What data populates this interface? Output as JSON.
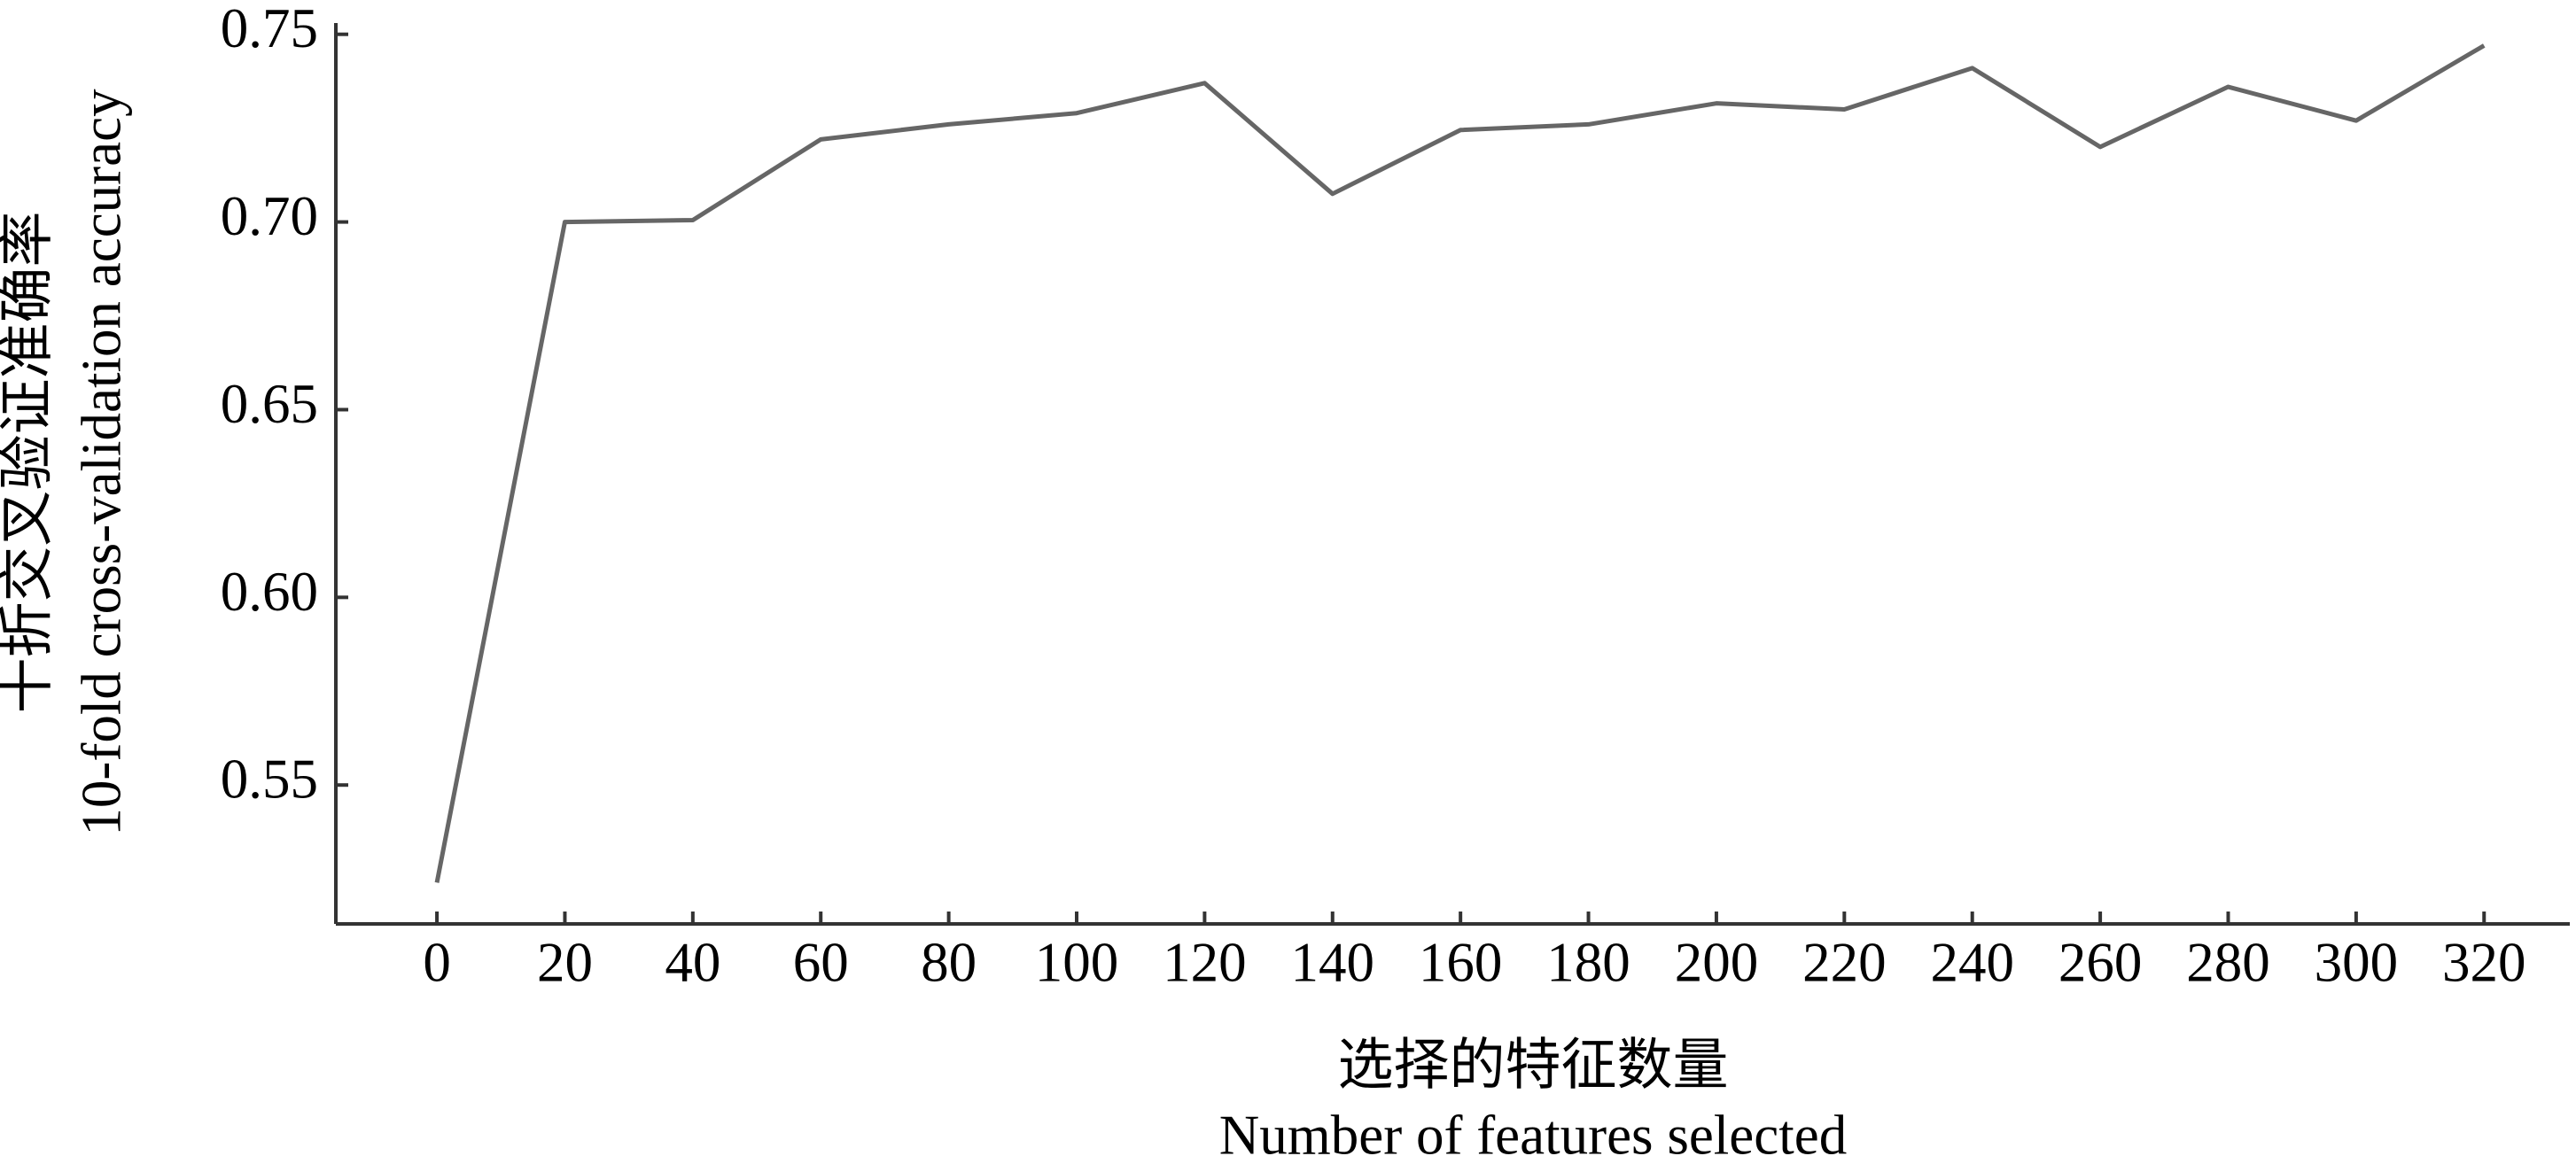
{
  "chart_data": {
    "type": "line",
    "xlabel": [
      "选择的特征数量",
      "Number of features selected"
    ],
    "ylabel": [
      "十折交叉验证准确率",
      "10-fold cross-validation accuracy"
    ],
    "x": [
      0,
      20,
      40,
      60,
      80,
      100,
      120,
      140,
      160,
      180,
      200,
      220,
      240,
      260,
      280,
      300,
      320
    ],
    "series": [
      {
        "color": "#666666",
        "values": [
          0.524,
          0.7,
          0.7005,
          0.722,
          0.726,
          0.729,
          0.737,
          0.7075,
          0.7245,
          0.726,
          0.7316,
          0.73,
          0.741,
          0.72,
          0.736,
          0.727,
          0.747
        ]
      }
    ],
    "xlim": [
      -15.8,
      333.4
    ],
    "ylim": [
      0.513,
      0.753
    ],
    "xticks": [
      0,
      20,
      40,
      60,
      80,
      100,
      120,
      140,
      160,
      180,
      200,
      220,
      240,
      260,
      280,
      300,
      320
    ],
    "yticks": [
      {
        "value": 0.55,
        "label": "0.55"
      },
      {
        "value": 0.6,
        "label": "0.60"
      },
      {
        "value": 0.65,
        "label": "0.65"
      },
      {
        "value": 0.7,
        "label": "0.70"
      },
      0.75
    ],
    "grid": false
  }
}
